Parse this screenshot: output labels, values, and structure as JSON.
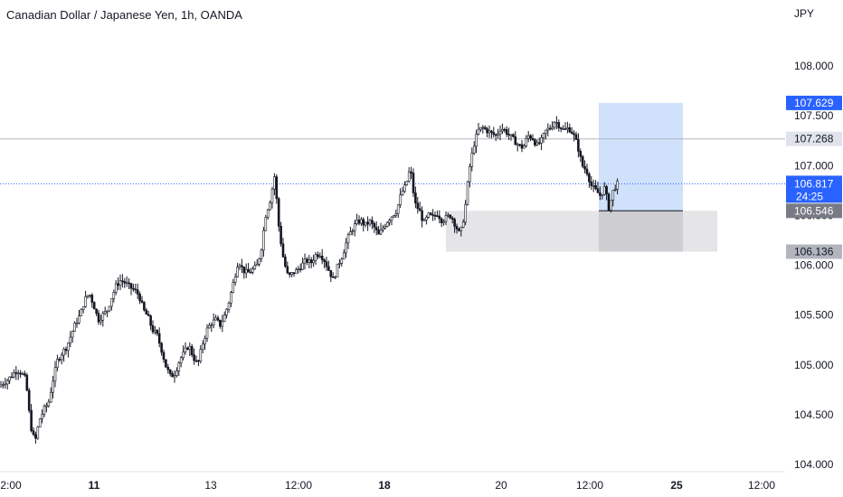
{
  "header": {
    "title": "Canadian Dollar / Japanese Yen, 1h, OANDA",
    "currency": "JPY"
  },
  "colors": {
    "candle": "#131722",
    "background": "#ffffff",
    "target_zone": "#cfe0fb",
    "stop_zone": "#e2e3e6",
    "target_tag": "#2962ff",
    "current_price_line": "#2962ff"
  },
  "chart_data": {
    "type": "candlestick",
    "title": "Canadian Dollar / Japanese Yen, 1h, OANDA",
    "ylabel": "JPY",
    "ylim": [
      104.0,
      108.0
    ],
    "y_ticks": [
      "108.000",
      "107.500",
      "107.000",
      "106.500",
      "106.000",
      "105.500",
      "105.000",
      "104.500",
      "104.000"
    ],
    "x_ticks": [
      {
        "label": "2:00",
        "bold": false
      },
      {
        "label": "11",
        "bold": true
      },
      {
        "label": "13",
        "bold": false
      },
      {
        "label": "12:00",
        "bold": false
      },
      {
        "label": "18",
        "bold": true
      },
      {
        "label": "20",
        "bold": false
      },
      {
        "label": "12:00",
        "bold": false
      },
      {
        "label": "25",
        "bold": true
      },
      {
        "label": "12:00",
        "bold": false
      }
    ],
    "price_path": [
      [
        0,
        104.78
      ],
      [
        5,
        104.82
      ],
      [
        10,
        104.85
      ],
      [
        15,
        104.9
      ],
      [
        20,
        104.95
      ],
      [
        25,
        104.92
      ],
      [
        30,
        104.85
      ],
      [
        35,
        104.4
      ],
      [
        40,
        104.22
      ],
      [
        45,
        104.45
      ],
      [
        50,
        104.55
      ],
      [
        55,
        104.62
      ],
      [
        60,
        104.85
      ],
      [
        65,
        105.05
      ],
      [
        70,
        105.12
      ],
      [
        75,
        105.18
      ],
      [
        80,
        105.3
      ],
      [
        85,
        105.42
      ],
      [
        90,
        105.5
      ],
      [
        95,
        105.65
      ],
      [
        100,
        105.72
      ],
      [
        105,
        105.6
      ],
      [
        110,
        105.45
      ],
      [
        115,
        105.5
      ],
      [
        120,
        105.55
      ],
      [
        125,
        105.68
      ],
      [
        130,
        105.8
      ],
      [
        135,
        105.85
      ],
      [
        140,
        105.82
      ],
      [
        145,
        105.78
      ],
      [
        150,
        105.75
      ],
      [
        155,
        105.7
      ],
      [
        160,
        105.55
      ],
      [
        165,
        105.48
      ],
      [
        170,
        105.35
      ],
      [
        175,
        105.3
      ],
      [
        180,
        105.15
      ],
      [
        185,
        104.98
      ],
      [
        190,
        104.88
      ],
      [
        195,
        104.92
      ],
      [
        200,
        105.05
      ],
      [
        205,
        105.12
      ],
      [
        210,
        105.2
      ],
      [
        215,
        105.08
      ],
      [
        220,
        105.0
      ],
      [
        225,
        105.2
      ],
      [
        230,
        105.35
      ],
      [
        235,
        105.42
      ],
      [
        240,
        105.45
      ],
      [
        245,
        105.4
      ],
      [
        250,
        105.5
      ],
      [
        255,
        105.65
      ],
      [
        260,
        105.85
      ],
      [
        265,
        106.05
      ],
      [
        270,
        105.95
      ],
      [
        275,
        105.92
      ],
      [
        280,
        105.95
      ],
      [
        285,
        105.98
      ],
      [
        290,
        106.15
      ],
      [
        295,
        106.5
      ],
      [
        300,
        106.65
      ],
      [
        305,
        106.9
      ],
      [
        310,
        106.35
      ],
      [
        315,
        106.05
      ],
      [
        320,
        105.88
      ],
      [
        325,
        105.92
      ],
      [
        330,
        105.95
      ],
      [
        335,
        106.0
      ],
      [
        340,
        106.05
      ],
      [
        345,
        106.02
      ],
      [
        350,
        106.1
      ],
      [
        355,
        106.12
      ],
      [
        360,
        106.05
      ],
      [
        365,
        105.95
      ],
      [
        370,
        105.85
      ],
      [
        375,
        106.0
      ],
      [
        380,
        106.1
      ],
      [
        385,
        106.25
      ],
      [
        390,
        106.35
      ],
      [
        395,
        106.42
      ],
      [
        400,
        106.45
      ],
      [
        405,
        106.4
      ],
      [
        410,
        106.44
      ],
      [
        415,
        106.38
      ],
      [
        420,
        106.3
      ],
      [
        425,
        106.38
      ],
      [
        430,
        106.45
      ],
      [
        435,
        106.5
      ],
      [
        440,
        106.55
      ],
      [
        445,
        106.72
      ],
      [
        450,
        106.8
      ],
      [
        455,
        106.98
      ],
      [
        460,
        106.62
      ],
      [
        465,
        106.55
      ],
      [
        470,
        106.42
      ],
      [
        475,
        106.5
      ],
      [
        480,
        106.48
      ],
      [
        485,
        106.52
      ],
      [
        490,
        106.45
      ],
      [
        495,
        106.48
      ],
      [
        500,
        106.5
      ],
      [
        505,
        106.4
      ],
      [
        510,
        106.3
      ],
      [
        515,
        106.52
      ],
      [
        520,
        106.95
      ],
      [
        525,
        107.2
      ],
      [
        530,
        107.35
      ],
      [
        535,
        107.38
      ],
      [
        540,
        107.35
      ],
      [
        545,
        107.32
      ],
      [
        550,
        107.3
      ],
      [
        555,
        107.38
      ],
      [
        560,
        107.35
      ],
      [
        565,
        107.3
      ],
      [
        570,
        107.25
      ],
      [
        575,
        107.2
      ],
      [
        580,
        107.18
      ],
      [
        585,
        107.3
      ],
      [
        590,
        107.28
      ],
      [
        595,
        107.2
      ],
      [
        600,
        107.25
      ],
      [
        605,
        107.35
      ],
      [
        610,
        107.38
      ],
      [
        615,
        107.45
      ],
      [
        620,
        107.4
      ],
      [
        625,
        107.35
      ],
      [
        630,
        107.38
      ],
      [
        635,
        107.32
      ],
      [
        640,
        107.2
      ],
      [
        645,
        107.0
      ],
      [
        650,
        106.95
      ],
      [
        655,
        106.8
      ],
      [
        660,
        106.75
      ],
      [
        665,
        106.7
      ],
      [
        670,
        106.78
      ],
      [
        675,
        106.55
      ],
      [
        678,
        106.72
      ],
      [
        683,
        106.817
      ]
    ],
    "horizontal_line": 107.268,
    "current_price": 106.817,
    "position": {
      "entry": 106.546,
      "target": 107.629,
      "stop": 106.136
    },
    "previous_stop_box": {
      "top": 106.546,
      "bottom": 106.136
    },
    "price_tags": {
      "target": "107.629",
      "line": "107.268",
      "current": "106.817",
      "countdown": "24:25",
      "entry": "106.546",
      "stop": "106.136"
    }
  }
}
